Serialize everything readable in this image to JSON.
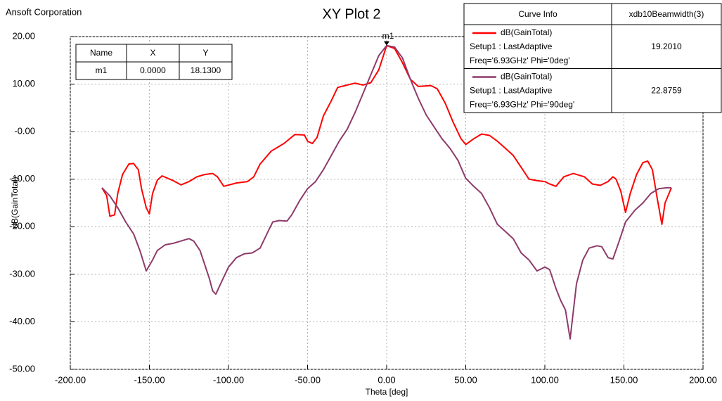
{
  "chart_data": {
    "type": "line",
    "title": "XY Plot 2",
    "company": "Ansoft Corporation",
    "x_label": "Theta [deg]",
    "y_label": "dB(GainTotal)",
    "xlim": [
      -200,
      200
    ],
    "ylim": [
      -50,
      20
    ],
    "xticks": [
      {
        "value": -200,
        "label": "-200.00"
      },
      {
        "value": -150,
        "label": "-150.00"
      },
      {
        "value": -100,
        "label": "-100.00"
      },
      {
        "value": -50,
        "label": "-50.00"
      },
      {
        "value": 0,
        "label": "0.00"
      },
      {
        "value": 50,
        "label": "50.00"
      },
      {
        "value": 100,
        "label": "100.00"
      },
      {
        "value": 150,
        "label": "150.00"
      },
      {
        "value": 200,
        "label": "200.00"
      }
    ],
    "yticks": [
      {
        "value": -50,
        "label": "-50.00"
      },
      {
        "value": -40,
        "label": "-40.00"
      },
      {
        "value": -30,
        "label": "-30.00"
      },
      {
        "value": -20,
        "label": "-20.00"
      },
      {
        "value": -10,
        "label": "-10.00"
      },
      {
        "value": 0,
        "label": "-0.00"
      },
      {
        "value": 10,
        "label": "10.00"
      },
      {
        "value": 20,
        "label": "20.00"
      }
    ],
    "grid": true,
    "curve_info_headers": [
      "Curve Info",
      "xdb10Beamwidth(3)"
    ],
    "series": [
      {
        "name": "dB(GainTotal)",
        "color": "#ff0000",
        "setup": "Setup1 : LastAdaptive",
        "variation": "Freq='6.93GHz' Phi='0deg'",
        "beamwidth": "19.2010",
        "x": [
          -180,
          -177,
          -175,
          -172,
          -170,
          -167,
          -163,
          -160,
          -157,
          -155,
          -152,
          -150,
          -148,
          -145,
          -142,
          -135,
          -130,
          -125,
          -120,
          -115,
          -110,
          -107,
          -103,
          -95,
          -88,
          -84,
          -80,
          -73,
          -65,
          -58,
          -52,
          -50,
          -47,
          -44,
          -40,
          -35,
          -31,
          -25,
          -20,
          -15,
          -10,
          -5,
          0,
          5,
          10,
          15,
          20,
          28,
          32,
          37,
          42,
          47,
          50,
          55,
          60,
          65,
          70,
          75,
          80,
          85,
          90,
          95,
          100,
          103,
          107,
          112,
          118,
          125,
          130,
          135,
          140,
          143,
          145,
          148,
          151,
          154,
          158,
          162,
          165,
          168,
          171,
          174,
          176,
          180
        ],
        "values": [
          -11.8,
          -13.5,
          -17.8,
          -17.5,
          -13,
          -9,
          -6.8,
          -6.7,
          -8,
          -12,
          -16,
          -17.3,
          -13,
          -10.2,
          -9.3,
          -10.3,
          -11.2,
          -10.5,
          -9.5,
          -9,
          -8.8,
          -9.5,
          -11.5,
          -10.8,
          -10.5,
          -9.5,
          -6.8,
          -4.1,
          -2.5,
          -0.6,
          -0.7,
          -2,
          -2.5,
          -1.2,
          3.3,
          6.5,
          9.3,
          9.8,
          10.2,
          9.8,
          10.3,
          13,
          18.1,
          17.5,
          14.5,
          11,
          9.5,
          9.7,
          9,
          6,
          2,
          -1.5,
          -2.7,
          -1.5,
          -0.5,
          -0.8,
          -2,
          -3.5,
          -5,
          -7.5,
          -10,
          -10.3,
          -10.5,
          -11,
          -11.5,
          -9.5,
          -8.8,
          -9.5,
          -11,
          -11.3,
          -10.5,
          -9.5,
          -10,
          -12.5,
          -17,
          -13,
          -9,
          -6.5,
          -6.2,
          -8,
          -14,
          -19.5,
          -15,
          -11.8
        ]
      },
      {
        "name": "dB(GainTotal)",
        "color": "#8e3b6b",
        "setup": "Setup1 : LastAdaptive",
        "variation": "Freq='6.93GHz' Phi='90deg'",
        "beamwidth": "22.8759",
        "x": [
          -180,
          -175,
          -170,
          -165,
          -160,
          -156,
          -152,
          -148,
          -145,
          -140,
          -135,
          -130,
          -125,
          -122,
          -118,
          -115,
          -112,
          -110,
          -108,
          -105,
          -100,
          -95,
          -90,
          -85,
          -80,
          -75,
          -72,
          -68,
          -63,
          -60,
          -55,
          -50,
          -45,
          -40,
          -35,
          -30,
          -25,
          -20,
          -15,
          -10,
          -5,
          0,
          5,
          10,
          15,
          20,
          25,
          30,
          35,
          40,
          45,
          50,
          55,
          60,
          65,
          70,
          75,
          80,
          85,
          90,
          95,
          100,
          103,
          107,
          110,
          113,
          116,
          120,
          124,
          128,
          133,
          136,
          140,
          143,
          147,
          151,
          157,
          162,
          167,
          172,
          177,
          180
        ],
        "values": [
          -11.8,
          -13.5,
          -16,
          -19,
          -21.5,
          -25,
          -29.3,
          -27,
          -25,
          -23.8,
          -23.5,
          -23,
          -22.5,
          -23,
          -25,
          -28,
          -31,
          -33.5,
          -34.2,
          -32,
          -28.5,
          -26.5,
          -25.7,
          -25.5,
          -24.5,
          -21,
          -19,
          -18.7,
          -18.8,
          -17.5,
          -14.5,
          -12,
          -10.5,
          -8,
          -5,
          -2,
          0.5,
          4,
          8,
          12,
          16,
          18.1,
          17.8,
          15.5,
          11,
          7,
          3.5,
          1,
          -1.5,
          -3.5,
          -6,
          -9.8,
          -11.5,
          -13,
          -16,
          -19.5,
          -21,
          -22.5,
          -25.5,
          -27,
          -29.3,
          -28.5,
          -29,
          -33,
          -35.5,
          -37.5,
          -43.6,
          -32,
          -27,
          -24.5,
          -24,
          -24.2,
          -26.5,
          -26.8,
          -23,
          -19,
          -16.5,
          -15,
          -13,
          -12,
          -11.8,
          -11.8
        ]
      }
    ],
    "marker": {
      "name": "m1",
      "x": 0,
      "y": 18.13,
      "table_headers": [
        "Name",
        "X",
        "Y"
      ],
      "table_row": [
        "m1",
        "0.0000",
        "18.1300"
      ]
    }
  }
}
